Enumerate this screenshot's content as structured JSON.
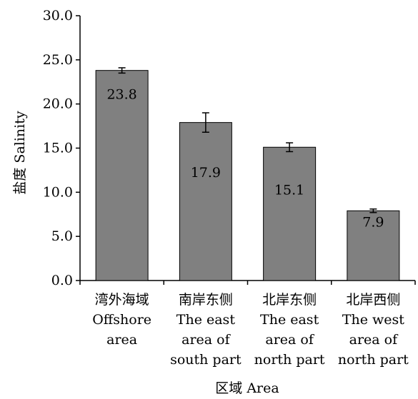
{
  "chart_data": {
    "type": "bar",
    "title": "",
    "xlabel": "区域 Area",
    "ylabel": "盐度 Salinity",
    "ylim": [
      0,
      30
    ],
    "yticks": [
      "0.0",
      "5.0",
      "10.0",
      "15.0",
      "20.0",
      "25.0",
      "30.0"
    ],
    "ytick_values": [
      0,
      5,
      10,
      15,
      20,
      25,
      30
    ],
    "grid": false,
    "bar_color": "#808080",
    "categories": [
      [
        "湾外海域",
        "Offshore",
        "area"
      ],
      [
        "南岸东侧",
        "The east",
        "area of",
        "south part"
      ],
      [
        "北岸东侧",
        "The east",
        "area of",
        "north part"
      ],
      [
        "北岸西侧",
        "The west",
        "area of",
        "north part"
      ]
    ],
    "values": [
      23.8,
      17.9,
      15.1,
      7.9
    ],
    "value_labels": [
      "23.8",
      "17.9",
      "15.1",
      "7.9"
    ],
    "error": [
      0.3,
      1.1,
      0.5,
      0.2
    ]
  }
}
